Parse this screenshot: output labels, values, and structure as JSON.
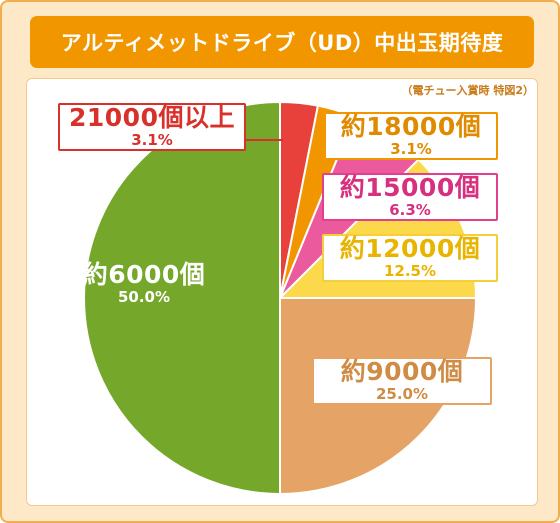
{
  "title": "アルティメットドライブ（UD）中出玉期待度",
  "note": "（電チュー入賞時 特図2）",
  "chart_data": {
    "type": "pie",
    "title": "アルティメットドライブ（UD）中出玉期待度",
    "slices": [
      {
        "label": "21000個以上",
        "value": 3.1,
        "pct_label": "3.1%",
        "color": "#e8413c"
      },
      {
        "label": "約18000個",
        "value": 3.1,
        "pct_label": "3.1%",
        "color": "#f29600"
      },
      {
        "label": "約15000個",
        "value": 6.3,
        "pct_label": "6.3%",
        "color": "#ea5a9c"
      },
      {
        "label": "約12000個",
        "value": 12.5,
        "pct_label": "12.5%",
        "color": "#fbd94a"
      },
      {
        "label": "約9000個",
        "value": 25.0,
        "pct_label": "25.0%",
        "color": "#e5a465"
      },
      {
        "label": "約6000個",
        "value": 50.0,
        "pct_label": "50.0%",
        "color": "#75a72b"
      }
    ]
  }
}
